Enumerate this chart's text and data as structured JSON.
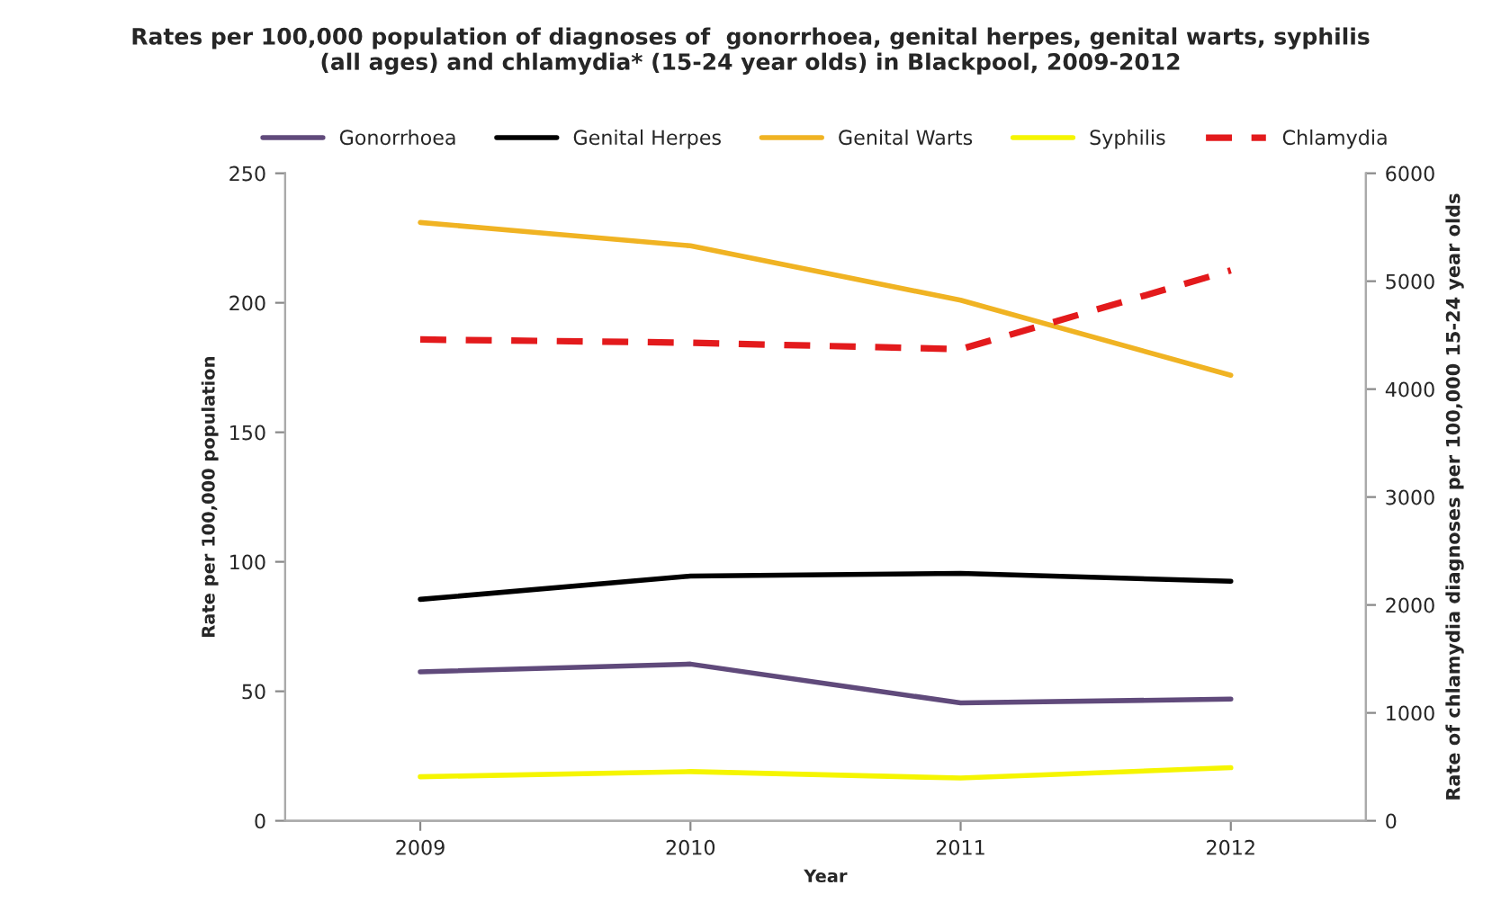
{
  "chart_data": {
    "type": "line",
    "title": "Rates per 100,000 population of diagnoses of  gonorrhoea, genital herpes, genital warts, syphilis\n(all ages) and chlamydia* (15-24 year olds) in Blackpool, 2009-2012",
    "xlabel": "Year",
    "ylabel": "Rate per 100,000 population",
    "y2label": "Rate of chlamydia diagnoses per 100,000 15-24 year olds",
    "categories": [
      "2009",
      "2010",
      "2011",
      "2012"
    ],
    "series": [
      {
        "name": "Gonorrhoea",
        "color": "#604a7b",
        "values": [
          57.5,
          60.5,
          45.5,
          47
        ]
      },
      {
        "name": "Genital Herpes",
        "color": "#000000",
        "values": [
          85.5,
          94.5,
          95.5,
          92.5
        ]
      },
      {
        "name": "Genital Warts",
        "color": "#f0b323",
        "values": [
          231,
          222,
          201,
          172
        ]
      },
      {
        "name": "Syphilis",
        "color": "#f5f500",
        "values": [
          17,
          19,
          16.5,
          20.5
        ]
      },
      {
        "name": "Chlamydia",
        "color": "#e31a1c",
        "values": [
          4460,
          4430,
          4370,
          5100
        ],
        "axis": "y2",
        "line_style": "dashed"
      }
    ],
    "ylim": [
      0,
      250
    ],
    "yticks": [
      0,
      50,
      100,
      150,
      200,
      250
    ],
    "y2lim": [
      0,
      6000
    ],
    "y2ticks": [
      0,
      1000,
      2000,
      3000,
      4000,
      5000,
      6000
    ],
    "legend": "top",
    "grid": false
  }
}
